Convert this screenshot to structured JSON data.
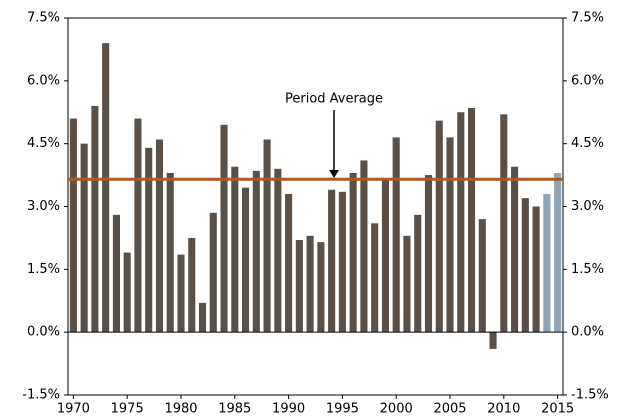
{
  "chart_data": {
    "type": "bar",
    "x": [
      1970,
      1971,
      1972,
      1973,
      1974,
      1975,
      1976,
      1977,
      1978,
      1979,
      1980,
      1981,
      1982,
      1983,
      1984,
      1985,
      1986,
      1987,
      1988,
      1989,
      1990,
      1991,
      1992,
      1993,
      1994,
      1995,
      1996,
      1997,
      1998,
      1999,
      2000,
      2001,
      2002,
      2003,
      2004,
      2005,
      2006,
      2007,
      2008,
      2009,
      2010,
      2011,
      2012,
      2013,
      2014,
      2015
    ],
    "values": [
      5.1,
      4.5,
      5.4,
      6.9,
      2.8,
      1.9,
      5.1,
      4.4,
      4.6,
      3.8,
      1.85,
      2.25,
      0.7,
      2.85,
      4.95,
      3.95,
      3.45,
      3.85,
      4.6,
      3.9,
      3.3,
      2.2,
      2.3,
      2.15,
      3.4,
      3.35,
      3.8,
      4.1,
      2.6,
      3.65,
      4.65,
      2.3,
      2.8,
      3.75,
      5.05,
      4.65,
      5.25,
      5.35,
      2.7,
      -0.4,
      5.2,
      3.95,
      3.2,
      3.0,
      3.3,
      3.8
    ],
    "colors": [
      "#5c5046",
      "#5c5046",
      "#5c5046",
      "#5c5046",
      "#5c5046",
      "#5c5046",
      "#5c5046",
      "#5c5046",
      "#5c5046",
      "#5c5046",
      "#5c5046",
      "#5c5046",
      "#5c5046",
      "#5c5046",
      "#5c5046",
      "#5c5046",
      "#5c5046",
      "#5c5046",
      "#5c5046",
      "#5c5046",
      "#5c5046",
      "#5c5046",
      "#5c5046",
      "#5c5046",
      "#5c5046",
      "#5c5046",
      "#5c5046",
      "#5c5046",
      "#5c5046",
      "#5c5046",
      "#5c5046",
      "#5c5046",
      "#5c5046",
      "#5c5046",
      "#5c5046",
      "#5c5046",
      "#5c5046",
      "#5c5046",
      "#5c5046",
      "#5c5046",
      "#5c5046",
      "#5c5046",
      "#5c5046",
      "#5c5046",
      "#8fa4b6",
      "#8fa4b6"
    ],
    "xlim": [
      1969.5,
      2015.5
    ],
    "xticks": [
      1970,
      1975,
      1980,
      1985,
      1990,
      1995,
      2000,
      2005,
      2010,
      2015
    ],
    "ylim": [
      -1.5,
      7.5
    ],
    "yticks": [
      {
        "value": -1.5,
        "label": "-1.5%"
      },
      {
        "value": 0,
        "label": "0.0%"
      },
      {
        "value": 1.5,
        "label": "1.5%"
      },
      {
        "value": 3,
        "label": "3.0%"
      },
      {
        "value": 4.5,
        "label": "4.5%"
      },
      {
        "value": 6,
        "label": "6.0%"
      },
      {
        "value": 7.5,
        "label": "7.5%"
      }
    ],
    "y2lim": [
      -1.5,
      7.5
    ],
    "y2ticks": [
      {
        "value": -1.5,
        "label": "-1.5%"
      },
      {
        "value": 0,
        "label": "0.0%"
      },
      {
        "value": 1.5,
        "label": "1.5%"
      },
      {
        "value": 3,
        "label": "3.0%"
      },
      {
        "value": 4.5,
        "label": "4.5%"
      },
      {
        "value": 6,
        "label": "6.0%"
      },
      {
        "value": 7.5,
        "label": "7.5%"
      }
    ],
    "reference_line": {
      "label": "Period Average",
      "value": 3.65,
      "color": "#b5561c"
    }
  }
}
